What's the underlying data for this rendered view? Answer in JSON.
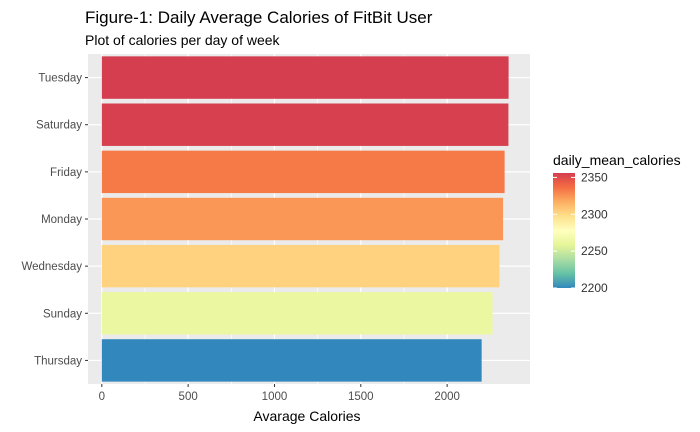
{
  "chart_data": {
    "type": "bar",
    "orientation": "horizontal",
    "title": "Figure-1: Daily Average Calories of FitBit User",
    "subtitle": "Plot of calories per day of week",
    "xlabel": "Avarage Calories",
    "ylabel": "",
    "categories": [
      "Tuesday",
      "Saturday",
      "Friday",
      "Monday",
      "Wednesday",
      "Sunday",
      "Thursday"
    ],
    "values": [
      2356,
      2355,
      2333,
      2324,
      2303,
      2263,
      2200
    ],
    "xlim": [
      -80,
      2480
    ],
    "xticks": [
      0,
      500,
      1000,
      1500,
      2000
    ],
    "grid": true,
    "legend": {
      "title": "daily_mean_calories",
      "position": "right",
      "type": "colorbar",
      "ticks": [
        2200,
        2250,
        2300,
        2350
      ],
      "range": [
        2200,
        2356
      ],
      "palette": [
        "#3288bd",
        "#66c2a5",
        "#abdda4",
        "#e6f598",
        "#ffffbf",
        "#fee08b",
        "#fdae61",
        "#f46d43",
        "#d53e4f"
      ]
    }
  }
}
